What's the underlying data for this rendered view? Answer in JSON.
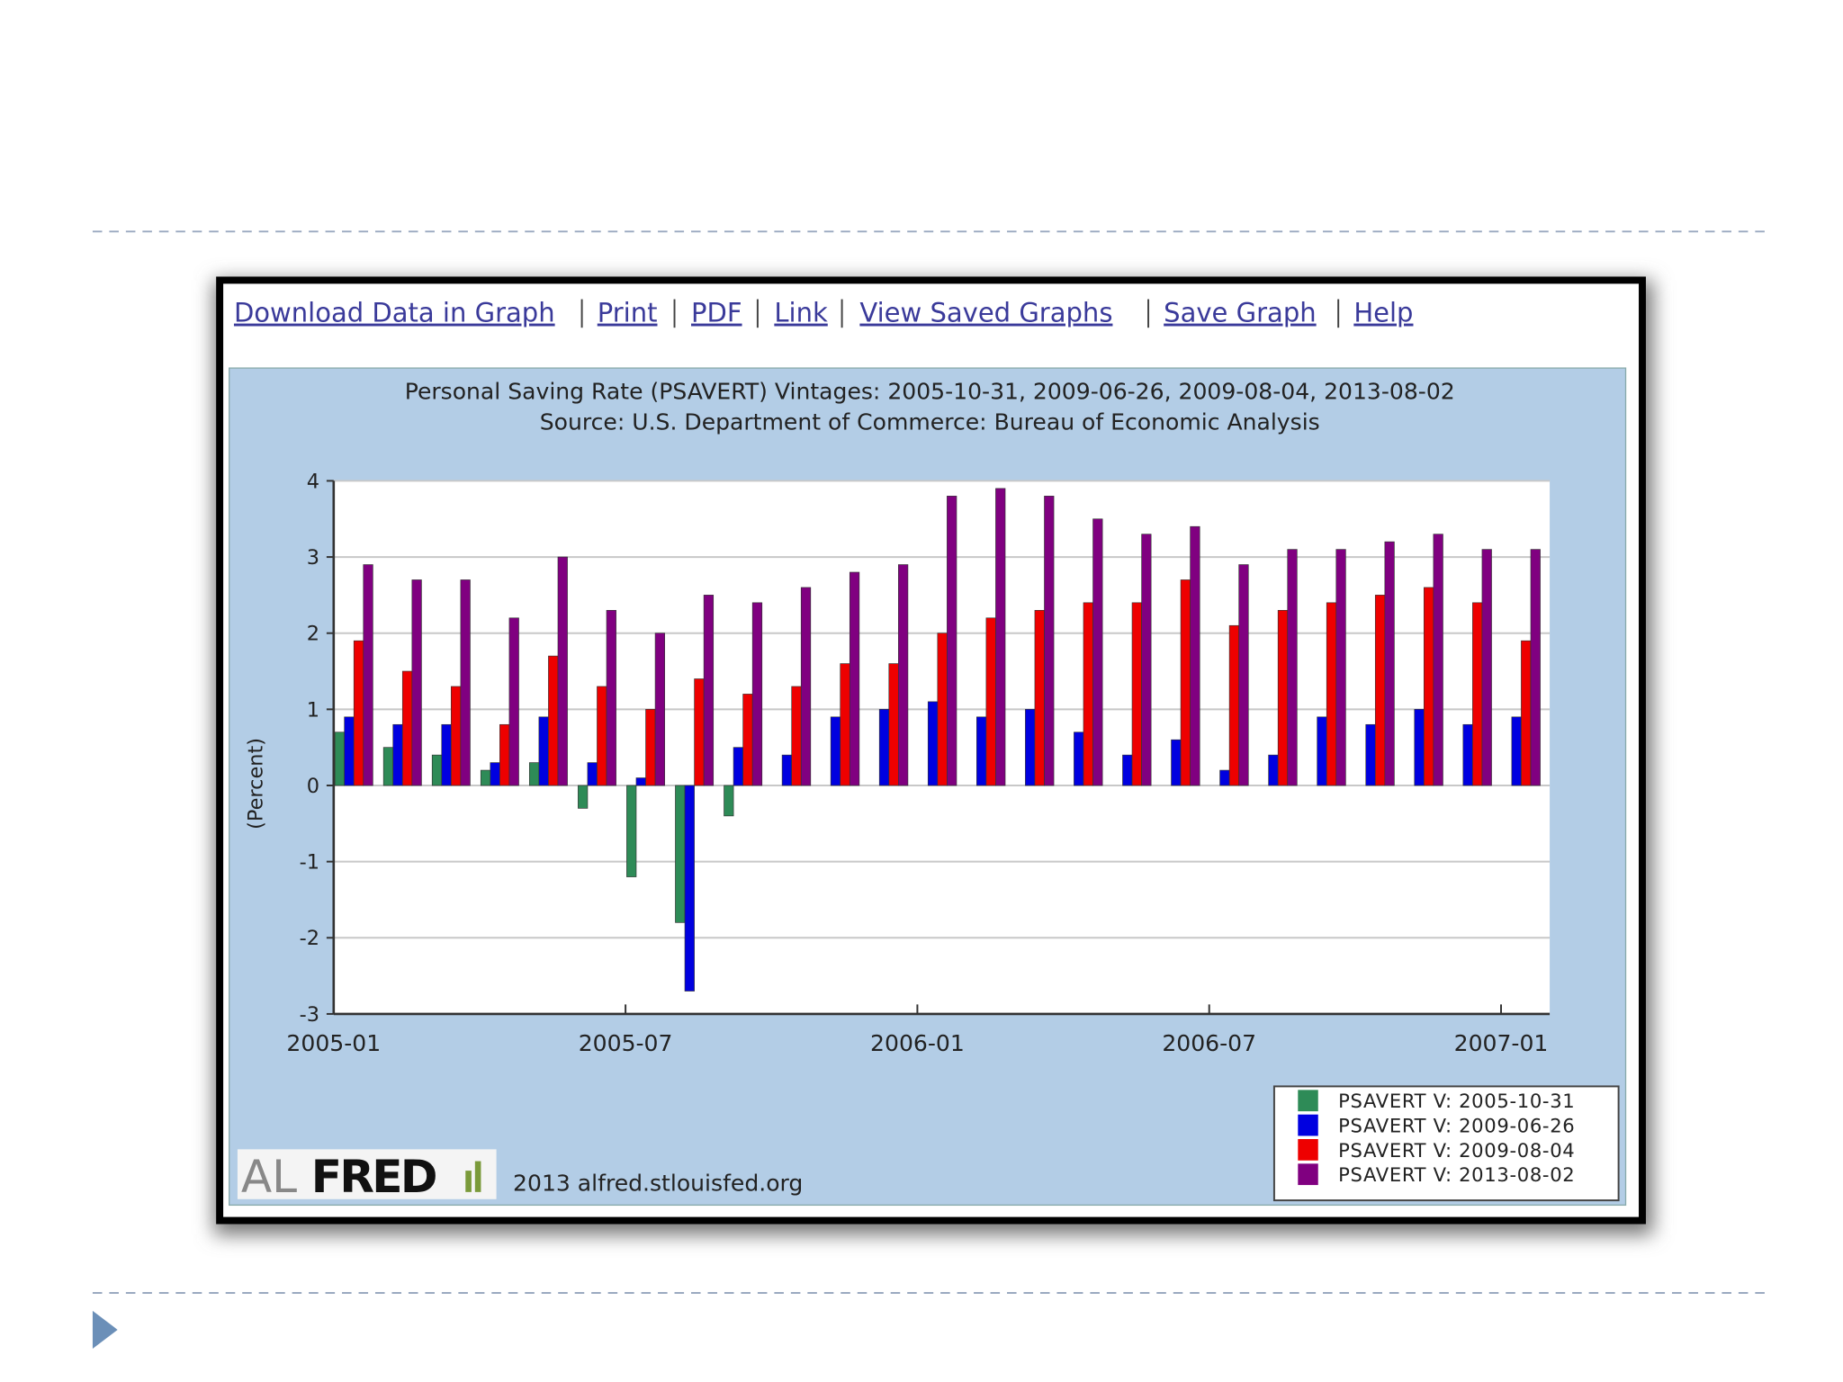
{
  "toolbar": {
    "links": [
      "Download Data in Graph",
      "Print",
      "PDF",
      "Link",
      "View Saved Graphs",
      "Save Graph",
      "Help"
    ]
  },
  "chart_data": {
    "type": "bar",
    "title": "Personal Saving Rate (PSAVERT) Vintages: 2005-10-31, 2009-06-26, 2009-08-04, 2013-08-02",
    "subtitle": "Source: U.S. Department of Commerce: Bureau of Economic Analysis",
    "y_label": "(Percent)",
    "categories": [
      "2005-01",
      null,
      null,
      null,
      null,
      null,
      "2005-07",
      null,
      null,
      null,
      null,
      null,
      "2006-01",
      null,
      null,
      null,
      null,
      null,
      "2006-07",
      null,
      null,
      null,
      null,
      null,
      "2007-01"
    ],
    "series": [
      {
        "name": "PSAVERT V: 2005-10-31",
        "color": "#2e8b57",
        "values": [
          0.7,
          0.5,
          0.4,
          0.2,
          0.3,
          -0.3,
          -1.2,
          -1.8,
          -0.4,
          null,
          null,
          null,
          null,
          null,
          null,
          null,
          null,
          null,
          null,
          null,
          null,
          null,
          null,
          null,
          null
        ]
      },
      {
        "name": "PSAVERT V: 2009-06-26",
        "color": "#0000e0",
        "values": [
          0.9,
          0.8,
          0.8,
          0.3,
          0.9,
          0.3,
          0.1,
          -2.7,
          0.5,
          0.4,
          0.9,
          1.0,
          1.1,
          0.9,
          1.0,
          0.7,
          0.4,
          0.6,
          0.2,
          0.4,
          0.9,
          0.8,
          1.0,
          0.8,
          0.9
        ]
      },
      {
        "name": "PSAVERT V: 2009-08-04",
        "color": "#ee0000",
        "values": [
          1.9,
          1.5,
          1.3,
          0.8,
          1.7,
          1.3,
          1.0,
          1.4,
          1.2,
          1.3,
          1.6,
          1.6,
          2.0,
          2.2,
          2.3,
          2.4,
          2.4,
          2.7,
          2.1,
          2.3,
          2.4,
          2.5,
          2.6,
          2.4,
          1.9
        ]
      },
      {
        "name": "PSAVERT V: 2013-08-02",
        "color": "#800080",
        "values": [
          2.9,
          2.7,
          2.7,
          2.2,
          3.0,
          2.3,
          2.0,
          2.5,
          2.4,
          2.6,
          2.8,
          2.9,
          3.8,
          3.9,
          3.8,
          3.5,
          3.3,
          3.4,
          2.9,
          3.1,
          3.1,
          3.2,
          3.3,
          3.1,
          3.1
        ]
      }
    ],
    "ylim": [
      -3,
      4
    ],
    "yticks": [
      -3,
      -2,
      -1,
      0,
      1,
      2,
      3,
      4
    ],
    "grid": true,
    "legend": "lower right"
  },
  "footer": {
    "logo_light": "AL",
    "logo_bold": "FRED",
    "credit": "2013 alfred.stlouisfed.org"
  }
}
